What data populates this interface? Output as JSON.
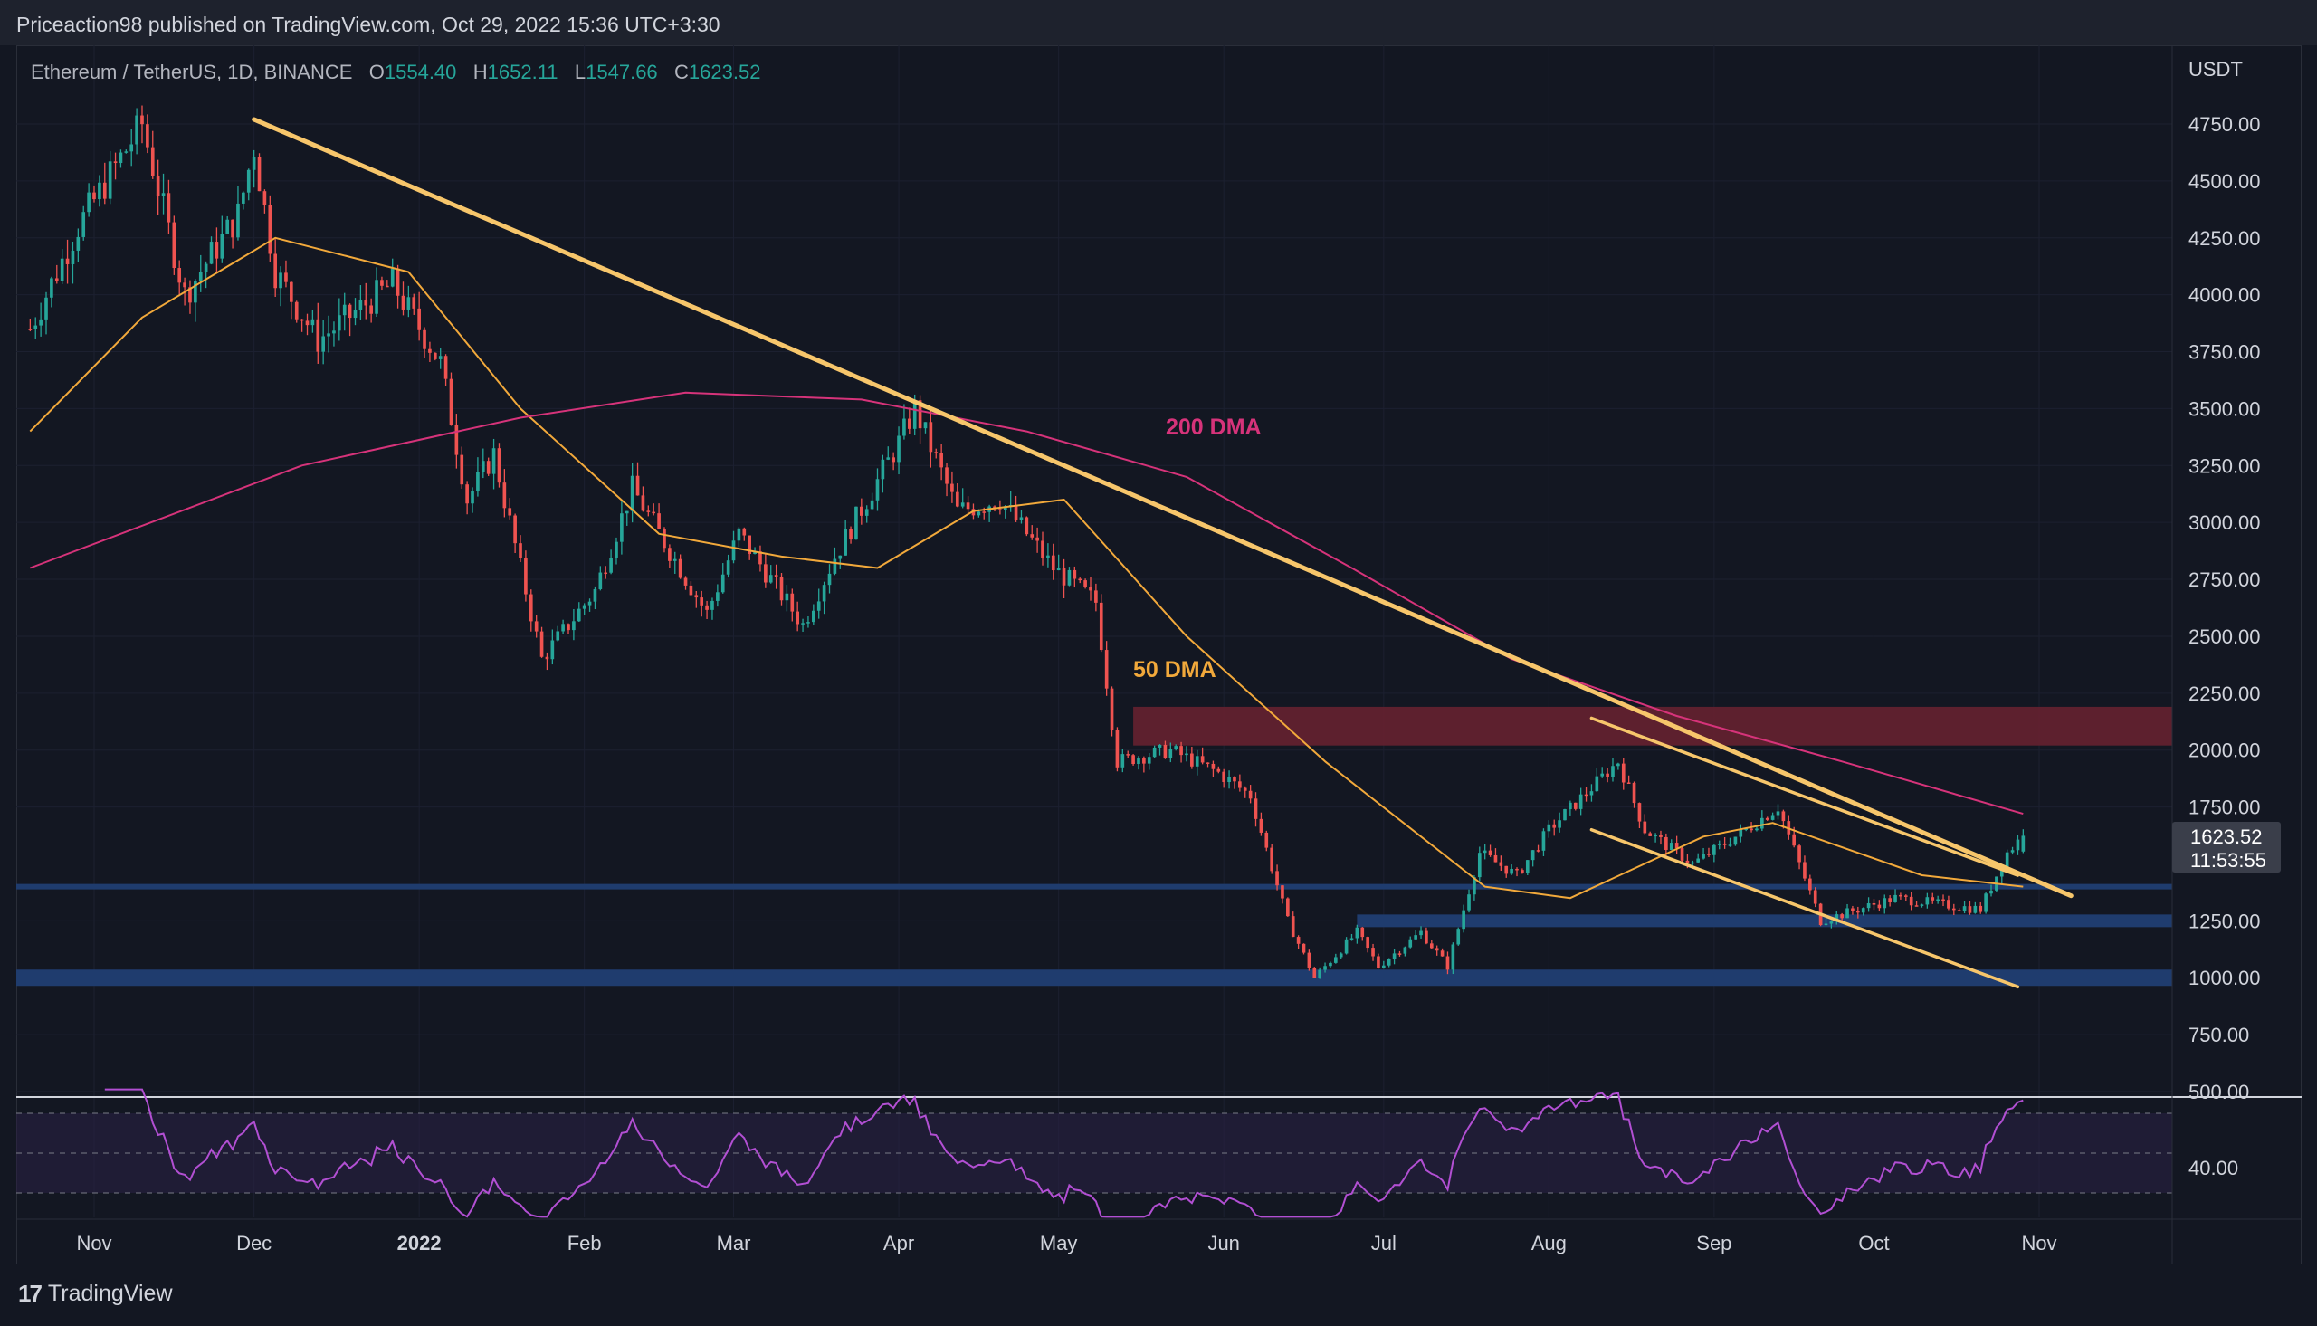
{
  "header": {
    "published": "Priceaction98 published on TradingView.com, Oct 29, 2022 15:36 UTC+3:30"
  },
  "legend": {
    "symbol": "Ethereum / TetherUS, 1D, BINANCE",
    "o_label": "O",
    "o": "1554.40",
    "h_label": "H",
    "h": "1652.11",
    "l_label": "L",
    "l": "1547.66",
    "c_label": "C",
    "c": "1623.52"
  },
  "price_axis": {
    "currency": "USDT",
    "last_price": "1623.52",
    "countdown": "11:53:55"
  },
  "footer": {
    "brand": "TradingView",
    "logo_icon": "tradingview-logo-icon"
  },
  "colors": {
    "up": "#26a69a",
    "down": "#ef5350",
    "dma50": "#f2a93b",
    "dma200": "#d6337a",
    "trendline": "#f7c66b",
    "resistance_zone": "#6b2230",
    "support": "#1f3c6e",
    "rsi": "#b24fd3",
    "rsi_band": "#2a2145"
  },
  "chart_data": {
    "type": "candlestick",
    "title": "",
    "symbol": "Ethereum / TetherUS",
    "interval": "1D",
    "exchange": "BINANCE",
    "y_axis": {
      "ylim": [
        500,
        4900
      ],
      "ticks": [
        "4750.00",
        "4500.00",
        "4250.00",
        "4000.00",
        "3750.00",
        "3500.00",
        "3250.00",
        "3000.00",
        "2750.00",
        "2500.00",
        "2250.00",
        "2000.00",
        "1750.00",
        "1250.00",
        "1000.00",
        "750.00",
        "500.00"
      ]
    },
    "x_axis": {
      "ticks": [
        {
          "label": "Nov",
          "date": "2021-11-01"
        },
        {
          "label": "Dec",
          "date": "2021-12-01"
        },
        {
          "label": "2022",
          "date": "2022-01-01",
          "bold": true
        },
        {
          "label": "Feb",
          "date": "2022-02-01"
        },
        {
          "label": "Mar",
          "date": "2022-03-01"
        },
        {
          "label": "Apr",
          "date": "2022-04-01"
        },
        {
          "label": "May",
          "date": "2022-05-01"
        },
        {
          "label": "Jun",
          "date": "2022-06-01"
        },
        {
          "label": "Jul",
          "date": "2022-07-01"
        },
        {
          "label": "Aug",
          "date": "2022-08-01"
        },
        {
          "label": "Sep",
          "date": "2022-09-01"
        },
        {
          "label": "Oct",
          "date": "2022-10-01"
        },
        {
          "label": "Nov",
          "date": "2022-11-01"
        }
      ]
    },
    "price_anchors": [
      {
        "date": "2021-10-20",
        "close": 3850
      },
      {
        "date": "2021-10-29",
        "close": 4300
      },
      {
        "date": "2021-11-10",
        "close": 4750
      },
      {
        "date": "2021-11-18",
        "close": 4000
      },
      {
        "date": "2021-11-28",
        "close": 4350
      },
      {
        "date": "2021-12-01",
        "close": 4650
      },
      {
        "date": "2021-12-05",
        "close": 4100
      },
      {
        "date": "2021-12-13",
        "close": 3800
      },
      {
        "date": "2021-12-27",
        "close": 4050
      },
      {
        "date": "2022-01-05",
        "close": 3700
      },
      {
        "date": "2022-01-10",
        "close": 3100
      },
      {
        "date": "2022-01-15",
        "close": 3300
      },
      {
        "date": "2022-01-24",
        "close": 2400
      },
      {
        "date": "2022-02-03",
        "close": 2700
      },
      {
        "date": "2022-02-10",
        "close": 3150
      },
      {
        "date": "2022-02-24",
        "close": 2600
      },
      {
        "date": "2022-03-02",
        "close": 2950
      },
      {
        "date": "2022-03-14",
        "close": 2550
      },
      {
        "date": "2022-03-20",
        "close": 2850
      },
      {
        "date": "2022-04-01",
        "close": 3350
      },
      {
        "date": "2022-04-04",
        "close": 3500
      },
      {
        "date": "2022-04-12",
        "close": 3050
      },
      {
        "date": "2022-04-20",
        "close": 3100
      },
      {
        "date": "2022-04-30",
        "close": 2800
      },
      {
        "date": "2022-05-08",
        "close": 2650
      },
      {
        "date": "2022-05-12",
        "close": 1950
      },
      {
        "date": "2022-05-22",
        "close": 2000
      },
      {
        "date": "2022-05-31",
        "close": 1900
      },
      {
        "date": "2022-06-06",
        "close": 1800
      },
      {
        "date": "2022-06-13",
        "close": 1250
      },
      {
        "date": "2022-06-18",
        "close": 1000
      },
      {
        "date": "2022-06-26",
        "close": 1200
      },
      {
        "date": "2022-06-30",
        "close": 1050
      },
      {
        "date": "2022-07-08",
        "close": 1200
      },
      {
        "date": "2022-07-13",
        "close": 1050
      },
      {
        "date": "2022-07-19",
        "close": 1550
      },
      {
        "date": "2022-07-26",
        "close": 1450
      },
      {
        "date": "2022-08-01",
        "close": 1650
      },
      {
        "date": "2022-08-14",
        "close": 1950
      },
      {
        "date": "2022-08-19",
        "close": 1650
      },
      {
        "date": "2022-08-28",
        "close": 1500
      },
      {
        "date": "2022-09-07",
        "close": 1650
      },
      {
        "date": "2022-09-13",
        "close": 1750
      },
      {
        "date": "2022-09-21",
        "close": 1250
      },
      {
        "date": "2022-10-05",
        "close": 1350
      },
      {
        "date": "2022-10-21",
        "close": 1300
      },
      {
        "date": "2022-10-26",
        "close": 1550
      },
      {
        "date": "2022-10-29",
        "close": 1623.52
      }
    ],
    "indicators": [
      {
        "name": "50 DMA",
        "label": "50 DMA",
        "color": "#f2a93b",
        "points": [
          [
            "2021-10-20",
            3400
          ],
          [
            "2021-11-10",
            3900
          ],
          [
            "2021-12-05",
            4250
          ],
          [
            "2021-12-30",
            4100
          ],
          [
            "2022-01-20",
            3500
          ],
          [
            "2022-02-15",
            2950
          ],
          [
            "2022-03-10",
            2850
          ],
          [
            "2022-03-28",
            2800
          ],
          [
            "2022-04-15",
            3050
          ],
          [
            "2022-05-02",
            3100
          ],
          [
            "2022-05-25",
            2500
          ],
          [
            "2022-06-20",
            1950
          ],
          [
            "2022-07-20",
            1400
          ],
          [
            "2022-08-05",
            1350
          ],
          [
            "2022-08-30",
            1620
          ],
          [
            "2022-09-12",
            1680
          ],
          [
            "2022-10-10",
            1450
          ],
          [
            "2022-10-29",
            1400
          ]
        ]
      },
      {
        "name": "200 DMA",
        "label": "200 DMA",
        "color": "#d6337a",
        "points": [
          [
            "2021-10-20",
            2800
          ],
          [
            "2021-12-10",
            3250
          ],
          [
            "2022-01-20",
            3460
          ],
          [
            "2022-02-20",
            3570
          ],
          [
            "2022-03-25",
            3540
          ],
          [
            "2022-04-25",
            3400
          ],
          [
            "2022-05-25",
            3200
          ],
          [
            "2022-06-25",
            2800
          ],
          [
            "2022-07-25",
            2400
          ],
          [
            "2022-08-25",
            2150
          ],
          [
            "2022-09-25",
            1950
          ],
          [
            "2022-10-29",
            1720
          ]
        ]
      }
    ],
    "rsi": {
      "overbought": 70,
      "oversold": 30,
      "axis_label": "40.00"
    },
    "annotations": {
      "trendline": [
        [
          "2021-12-01",
          4770
        ],
        [
          "2022-11-07",
          1360
        ]
      ],
      "channel_upper": [
        [
          "2022-08-09",
          2140
        ],
        [
          "2022-10-28",
          1450
        ]
      ],
      "channel_lower": [
        [
          "2022-08-09",
          1650
        ],
        [
          "2022-10-28",
          960
        ]
      ],
      "resistance_zone": [
        2020,
        2190
      ],
      "support_lines": [
        1400,
        1250,
        1000
      ]
    }
  }
}
